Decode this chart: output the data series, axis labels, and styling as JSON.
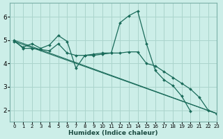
{
  "background_color": "#cceee8",
  "grid_color": "#aad4cc",
  "line_color": "#1a6b5a",
  "xlabel": "Humidex (Indice chaleur)",
  "xlim": [
    -0.5,
    23
  ],
  "ylim": [
    1.5,
    6.6
  ],
  "yticks": [
    2,
    3,
    4,
    5,
    6
  ],
  "xticks": [
    0,
    1,
    2,
    3,
    4,
    5,
    6,
    7,
    8,
    9,
    10,
    11,
    12,
    13,
    14,
    15,
    16,
    17,
    18,
    19,
    20,
    21,
    22,
    23
  ],
  "series": [
    {
      "x": [
        0,
        1,
        2,
        3,
        4,
        5,
        6,
        7,
        8,
        9,
        10,
        11,
        12,
        13,
        14,
        15,
        16,
        17,
        18,
        19,
        20
      ],
      "y": [
        4.95,
        4.7,
        4.85,
        4.65,
        4.8,
        5.2,
        4.95,
        3.8,
        4.35,
        4.35,
        4.4,
        4.45,
        5.75,
        6.05,
        6.25,
        4.85,
        3.7,
        3.3,
        3.05,
        2.6,
        1.95
      ]
    },
    {
      "x": [
        0,
        1,
        2,
        3,
        4,
        5,
        6,
        7,
        8,
        9,
        10,
        11,
        12,
        13,
        14,
        15,
        16,
        17,
        18,
        19,
        20,
        21,
        22,
        23
      ],
      "y": [
        5.0,
        4.65,
        4.65,
        4.6,
        4.55,
        4.85,
        4.45,
        4.35,
        4.35,
        4.4,
        4.45,
        4.45,
        4.45,
        4.5,
        4.5,
        4.0,
        3.9,
        3.65,
        3.4,
        3.15,
        2.9,
        2.55,
        2.0,
        1.85
      ]
    },
    {
      "x": [
        0,
        23
      ],
      "y": [
        4.95,
        1.85
      ]
    },
    {
      "x": [
        0,
        23
      ],
      "y": [
        5.0,
        1.85
      ]
    }
  ]
}
